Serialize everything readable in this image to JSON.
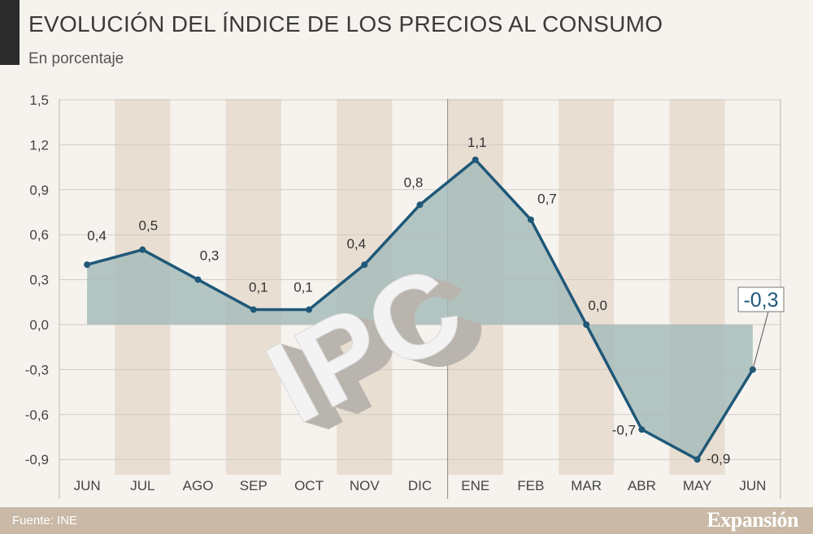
{
  "header": {
    "title": "EVOLUCIÓN DEL ÍNDICE DE LOS PRECIOS AL CONSUMO",
    "subtitle": "En porcentaje"
  },
  "footer": {
    "source": "Fuente: INE",
    "brand": "Expansión"
  },
  "watermark_text": "IPC",
  "colors": {
    "line": "#1f5878",
    "area": "#a7bcbb",
    "band": "#e9ded2",
    "grid": "#d0cbc3",
    "highlight_text": "#1f5878"
  },
  "chart_data": {
    "type": "area",
    "categories": [
      "JUN",
      "JUL",
      "AGO",
      "SEP",
      "OCT",
      "NOV",
      "DIC",
      "ENE",
      "FEB",
      "MAR",
      "ABR",
      "MAY",
      "JUN"
    ],
    "values": [
      0.4,
      0.5,
      0.3,
      0.1,
      0.1,
      0.4,
      0.8,
      1.1,
      0.7,
      0.0,
      -0.7,
      -0.9,
      -0.3
    ],
    "value_labels": [
      "0,4",
      "0,5",
      "0,3",
      "0,1",
      "0,1",
      "0,4",
      "0,8",
      "1,1",
      "0,7",
      "0,0",
      "-0,7",
      "-0,9",
      "-0,3"
    ],
    "yticks": [
      1.5,
      1.2,
      0.9,
      0.6,
      0.3,
      0.0,
      -0.3,
      -0.6,
      -0.9
    ],
    "ytick_labels": [
      "1,5",
      "1,2",
      "0,9",
      "0,6",
      "0,3",
      "0,0",
      "-0,3",
      "-0,6",
      "-0,9"
    ],
    "ylim": [
      -1.0,
      1.5
    ],
    "grid": true,
    "year_divider_between": [
      "DIC",
      "ENE"
    ],
    "highlight_last": true,
    "title": "EVOLUCIÓN DEL ÍNDICE DE LOS PRECIOS AL CONSUMO",
    "xlabel": "",
    "ylabel": "En porcentaje"
  }
}
